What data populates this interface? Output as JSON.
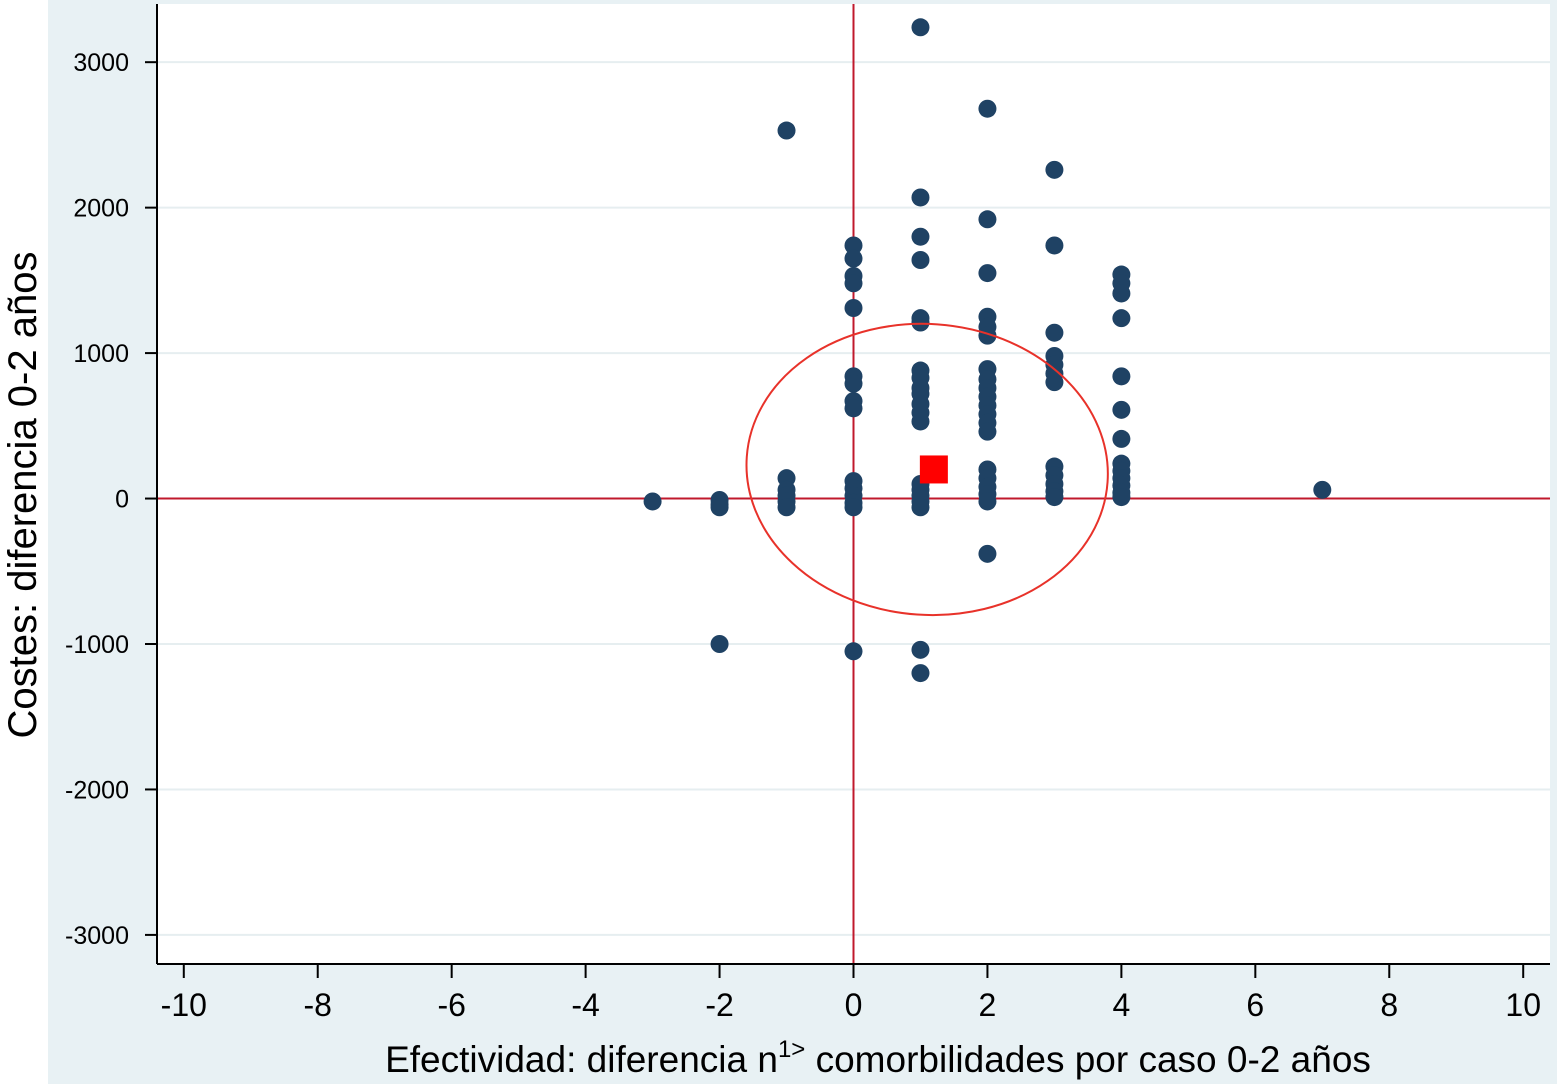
{
  "chart_data": {
    "type": "scatter",
    "title": "",
    "xlabel": {
      "main": "Efectividad: diferencia n",
      "superscript": "1>",
      "rest": " comorbilidades por caso 0-2 años"
    },
    "ylabel": "Costes: diferencia 0-2 años",
    "xlim": [
      -10.4,
      10.4
    ],
    "ylim": [
      -3200,
      3400
    ],
    "xticks": [
      -10,
      -8,
      -6,
      -4,
      -2,
      0,
      2,
      4,
      6,
      8,
      10
    ],
    "xtick_labels": [
      "-10",
      "-8",
      "-6",
      "-4",
      "-2",
      "0",
      "2",
      "4",
      "6",
      "8",
      "10"
    ],
    "yticks": [
      -3000,
      -2000,
      -1000,
      0,
      1000,
      2000,
      3000
    ],
    "ytick_labels": [
      "-3000",
      "-2000",
      "-1000",
      "0",
      "1000",
      "2000",
      "3000"
    ],
    "grid": "horizontal",
    "reference_lines": {
      "x": 0,
      "y": 0,
      "color": "#c0192c"
    },
    "ellipse": {
      "center": [
        1.1,
        200
      ],
      "half_width": 2.7,
      "half_height": 1000,
      "color": "#e8322a"
    },
    "mean_point": {
      "x": 1.2,
      "y": 200,
      "color": "#ff0000"
    },
    "colors": {
      "points": "#1f4264",
      "panel_background": "#e8f1f4",
      "plot_background": "#ffffff",
      "grid": "#e6eef0",
      "reference": "#c0192c",
      "ellipse": "#e8322a",
      "mean": "#ff0000"
    },
    "series": [
      {
        "points": [
          [
            -3,
            -20
          ],
          [
            -2,
            -10
          ],
          [
            -2,
            -40
          ],
          [
            -2,
            -60
          ],
          [
            -2,
            -1000
          ],
          [
            -1,
            140
          ],
          [
            -1,
            60
          ],
          [
            -1,
            20
          ],
          [
            -1,
            -20
          ],
          [
            -1,
            -60
          ],
          [
            -1,
            2530
          ],
          [
            0,
            1740
          ],
          [
            0,
            1650
          ],
          [
            0,
            1530
          ],
          [
            0,
            1480
          ],
          [
            0,
            1310
          ],
          [
            0,
            840
          ],
          [
            0,
            790
          ],
          [
            0,
            670
          ],
          [
            0,
            620
          ],
          [
            0,
            120
          ],
          [
            0,
            70
          ],
          [
            0,
            20
          ],
          [
            0,
            -30
          ],
          [
            0,
            -60
          ],
          [
            0,
            -1050
          ],
          [
            1,
            3240
          ],
          [
            1,
            2070
          ],
          [
            1,
            1800
          ],
          [
            1,
            1640
          ],
          [
            1,
            1240
          ],
          [
            1,
            1210
          ],
          [
            1,
            880
          ],
          [
            1,
            830
          ],
          [
            1,
            760
          ],
          [
            1,
            720
          ],
          [
            1,
            650
          ],
          [
            1,
            590
          ],
          [
            1,
            530
          ],
          [
            1,
            100
          ],
          [
            1,
            60
          ],
          [
            1,
            20
          ],
          [
            1,
            -20
          ],
          [
            1,
            -60
          ],
          [
            1,
            -1040
          ],
          [
            1,
            -1200
          ],
          [
            2,
            2680
          ],
          [
            2,
            1920
          ],
          [
            2,
            1550
          ],
          [
            2,
            1250
          ],
          [
            2,
            1180
          ],
          [
            2,
            1120
          ],
          [
            2,
            890
          ],
          [
            2,
            820
          ],
          [
            2,
            760
          ],
          [
            2,
            700
          ],
          [
            2,
            640
          ],
          [
            2,
            580
          ],
          [
            2,
            520
          ],
          [
            2,
            460
          ],
          [
            2,
            200
          ],
          [
            2,
            140
          ],
          [
            2,
            80
          ],
          [
            2,
            30
          ],
          [
            2,
            -20
          ],
          [
            2,
            -380
          ],
          [
            3,
            2260
          ],
          [
            3,
            1740
          ],
          [
            3,
            1140
          ],
          [
            3,
            980
          ],
          [
            3,
            920
          ],
          [
            3,
            860
          ],
          [
            3,
            800
          ],
          [
            3,
            220
          ],
          [
            3,
            160
          ],
          [
            3,
            100
          ],
          [
            3,
            50
          ],
          [
            3,
            10
          ],
          [
            4,
            1540
          ],
          [
            4,
            1480
          ],
          [
            4,
            1410
          ],
          [
            4,
            1240
          ],
          [
            4,
            840
          ],
          [
            4,
            610
          ],
          [
            4,
            410
          ],
          [
            4,
            240
          ],
          [
            4,
            190
          ],
          [
            4,
            140
          ],
          [
            4,
            90
          ],
          [
            4,
            40
          ],
          [
            4,
            10
          ],
          [
            7,
            60
          ]
        ]
      }
    ]
  }
}
